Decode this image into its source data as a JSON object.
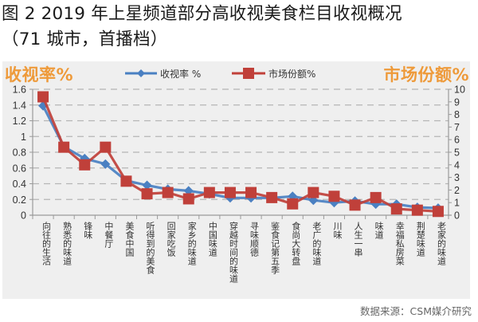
{
  "title": {
    "line1": "图 2 2019 年上星频道部分高收视美食栏目收视概况",
    "line2": "（71 城市，首播档）"
  },
  "axis_titles": {
    "left": "收视率%",
    "right": "市场份额%"
  },
  "legend": [
    {
      "label": "收视率 %",
      "marker": "diamond",
      "color": "#4a80c2"
    },
    {
      "label": "市场份额%",
      "marker": "square",
      "color": "#c0403a"
    }
  ],
  "source": "数据来源：CSM媒介研究",
  "colors": {
    "panel_bg": "#efefef",
    "axis_title": "#ee9a3a",
    "rating_series": "#4a80c2",
    "share_series": "#c0403a",
    "grid": "#b5b5b5",
    "axis": "#9a9a9a"
  },
  "chart_data": {
    "type": "line",
    "title": "图 2 2019 年上星频道部分高收视美食栏目收视概况（71 城市，首播档）",
    "xlabel": "",
    "ylabel": "收视率%",
    "y2label": "市场份额%",
    "ylim": [
      0,
      1.6
    ],
    "y2lim": [
      0,
      10
    ],
    "yticks": [
      "0",
      "0.2",
      "0.4",
      "0.6",
      "0.8",
      "1",
      "1.2",
      "1.4",
      "1.6"
    ],
    "y2ticks": [
      "0",
      "1",
      "2",
      "3",
      "4",
      "5",
      "6",
      "7",
      "8",
      "9",
      "10"
    ],
    "grid": "horizontal dashed",
    "legend_position": "top",
    "categories": [
      "向往的生活",
      "熟悉的味道",
      "锋味",
      "中餐厅",
      "美食中国",
      "听得到的美食",
      "回家吃饭",
      "家乡的味道",
      "中国味道",
      "穿越时间的味道",
      "寻味顺德",
      "鉴食记第五季",
      "食尚大转盘",
      "老广的味道",
      "川味",
      "人生一串",
      "味道",
      "幸福私房菜",
      "荆楚味道",
      "老家的味道"
    ],
    "series": [
      {
        "name": "收视率 %",
        "axis": "left",
        "marker": "diamond",
        "values": [
          1.39,
          0.87,
          0.72,
          0.65,
          0.44,
          0.38,
          0.33,
          0.31,
          0.27,
          0.22,
          0.22,
          0.22,
          0.24,
          0.19,
          0.16,
          0.18,
          0.14,
          0.14,
          0.1,
          0.09
        ]
      },
      {
        "name": "市场份额%",
        "axis": "right",
        "marker": "square",
        "values": [
          9.4,
          5.4,
          4.0,
          5.4,
          2.7,
          1.7,
          1.8,
          1.3,
          1.8,
          1.8,
          1.8,
          1.4,
          0.9,
          1.8,
          1.5,
          0.8,
          1.4,
          0.5,
          0.4,
          0.3
        ]
      }
    ]
  }
}
